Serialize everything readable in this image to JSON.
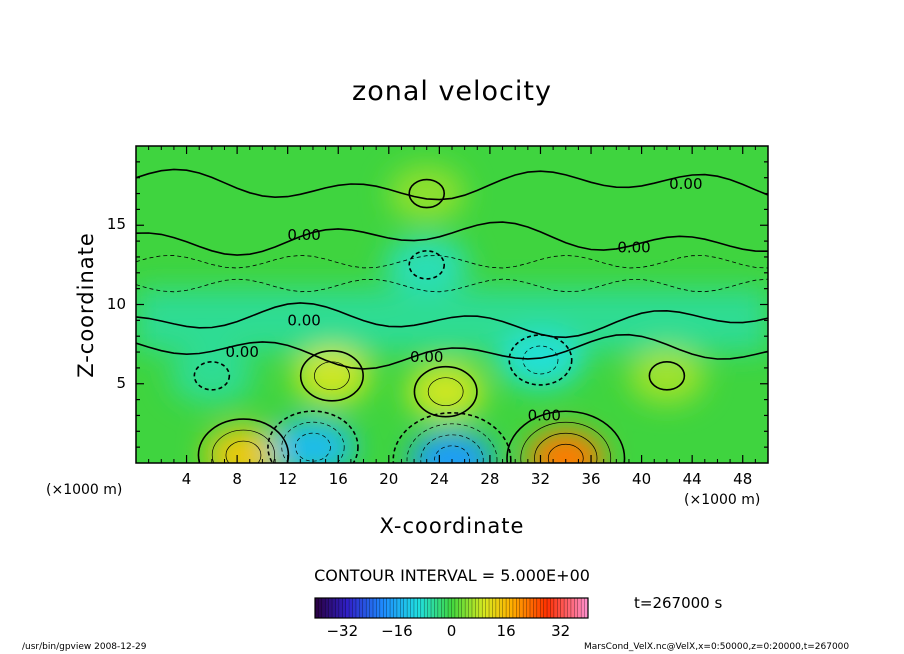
{
  "chart_data": {
    "type": "heatmap",
    "title": "zonal velocity",
    "xlabel": "X-coordinate",
    "ylabel": "Z-coordinate",
    "x_unit": "(×1000 m)",
    "xlim": [
      0,
      50
    ],
    "ylim": [
      0,
      20
    ],
    "x_ticks": [
      4,
      8,
      12,
      16,
      20,
      24,
      28,
      32,
      36,
      40,
      44,
      48
    ],
    "y_ticks": [
      5,
      10,
      15
    ],
    "contour_labels": [
      {
        "text": "0.00",
        "x": 43.5,
        "y": 17.6
      },
      {
        "text": "0.00",
        "x": 13.3,
        "y": 14.4
      },
      {
        "text": "0.00",
        "x": 39.4,
        "y": 13.6
      },
      {
        "text": "0.00",
        "x": 13.3,
        "y": 9.0
      },
      {
        "text": "0.00",
        "x": 8.4,
        "y": 7.0
      },
      {
        "text": "0.00",
        "x": 23.0,
        "y": 6.7
      },
      {
        "text": "0.00",
        "x": 32.3,
        "y": 3.0
      }
    ],
    "features": [
      {
        "kind": "max",
        "x": 15.5,
        "y": 5.5,
        "value": 9
      },
      {
        "kind": "max",
        "x": 24.5,
        "y": 4.5,
        "value": 9
      },
      {
        "kind": "max",
        "x": 8.5,
        "y": 0.5,
        "value": 14
      },
      {
        "kind": "max",
        "x": 34,
        "y": 0.3,
        "value": 22
      },
      {
        "kind": "max",
        "x": 42,
        "y": 5.5,
        "value": 6
      },
      {
        "kind": "max",
        "x": 23,
        "y": 17,
        "value": 5
      },
      {
        "kind": "min",
        "x": 14,
        "y": 1,
        "value": -14
      },
      {
        "kind": "min",
        "x": 25,
        "y": 0.2,
        "value": -18
      },
      {
        "kind": "min",
        "x": 32,
        "y": 6.5,
        "value": -9
      },
      {
        "kind": "min",
        "x": 23,
        "y": 12.5,
        "value": -7
      },
      {
        "kind": "min",
        "x": 6,
        "y": 5.5,
        "value": -5
      }
    ],
    "contour_interval": "CONTOUR INTERVAL = 5.000E+00",
    "time": "t=267000 s",
    "colorbar": {
      "ticks": [
        -32,
        -16,
        0,
        16,
        32
      ],
      "vmin": -40,
      "vmax": 40
    }
  },
  "footer": {
    "left": "/usr/bin/gpview   2008-12-29",
    "right": "MarsCond_VelX.nc@VelX,x=0:50000,z=0:20000,t=267000"
  }
}
